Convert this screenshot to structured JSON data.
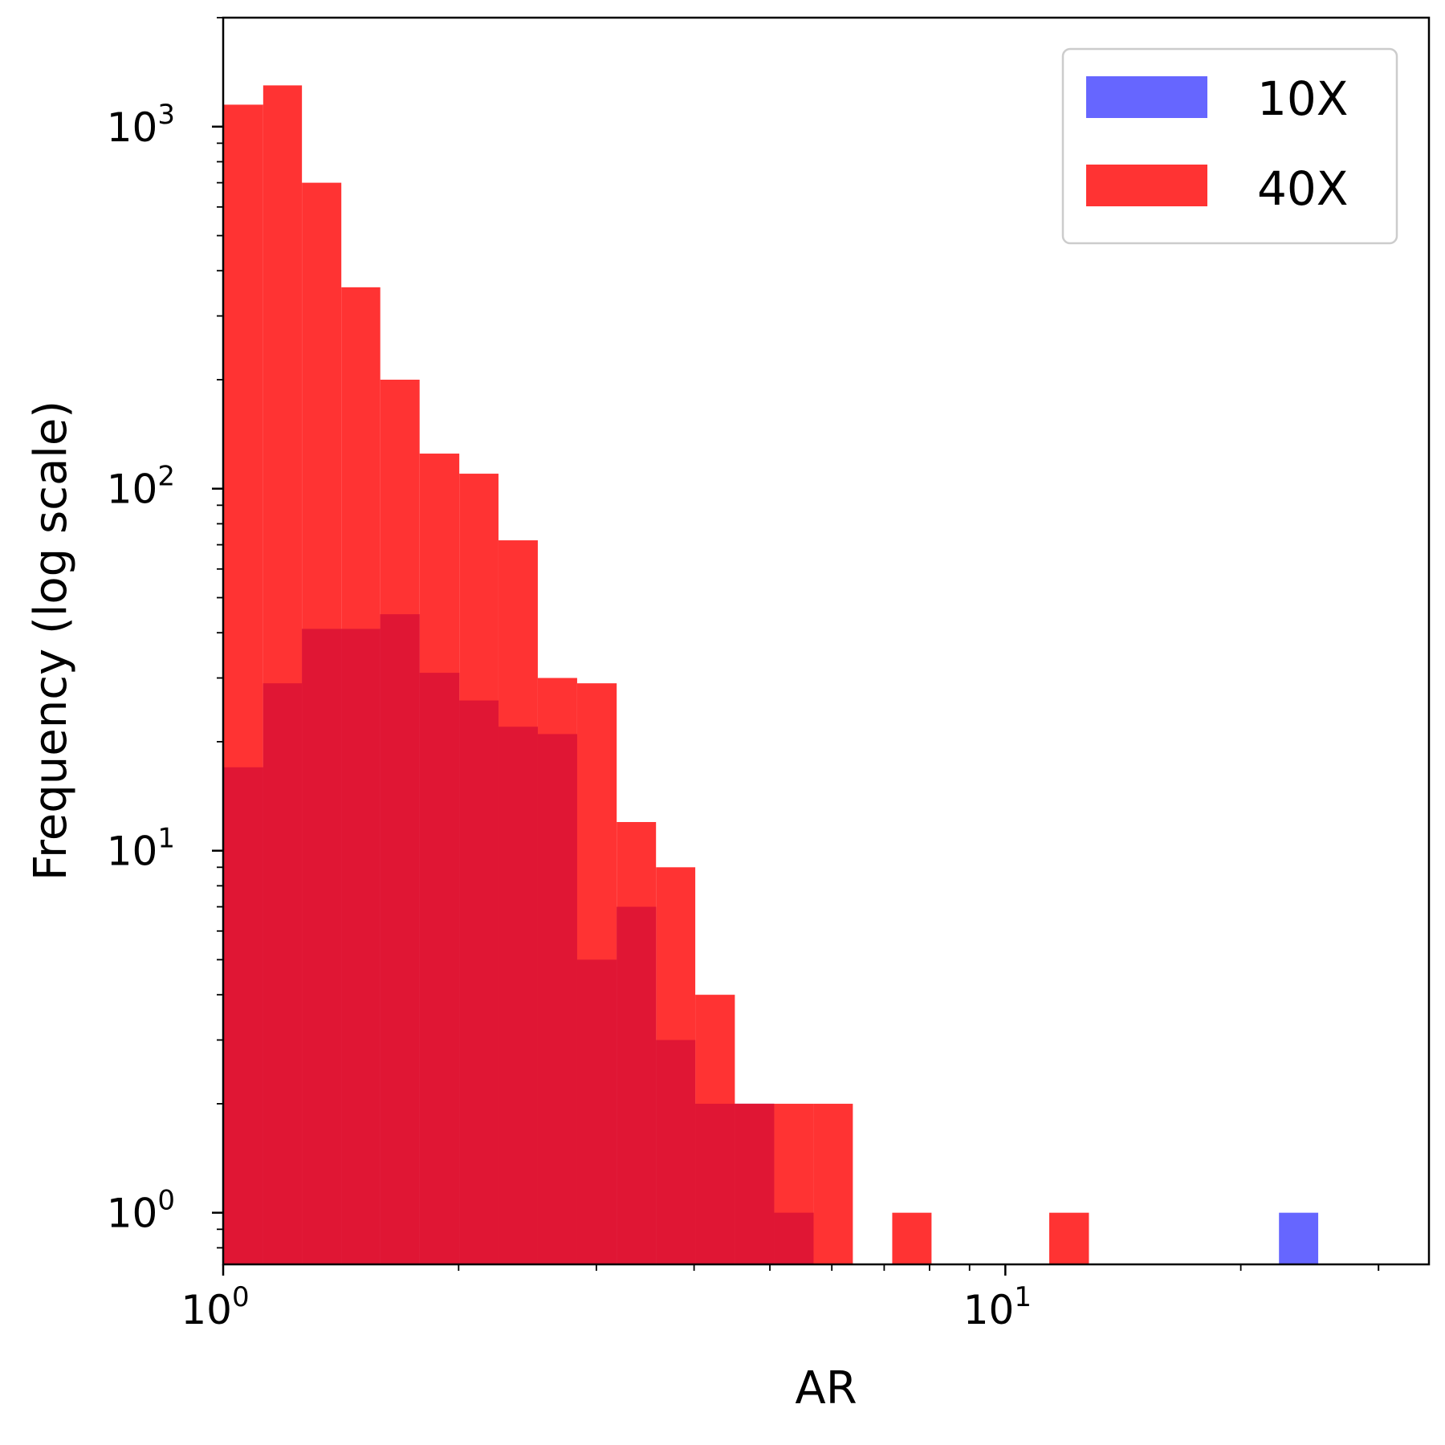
{
  "chart_data": {
    "type": "bar",
    "title": "",
    "xlabel": "AR",
    "ylabel": "Frequency (log scale)",
    "x_scale": "log",
    "y_scale": "log",
    "xlim": [
      1.0,
      34.8
    ],
    "ylim": [
      0.72,
      2000
    ],
    "x_ticks": [
      {
        "base": "10",
        "exp": "0",
        "value": 1
      },
      {
        "base": "10",
        "exp": "1",
        "value": 10
      }
    ],
    "y_ticks": [
      {
        "base": "10",
        "exp": "0",
        "value": 1
      },
      {
        "base": "10",
        "exp": "1",
        "value": 10
      },
      {
        "base": "10",
        "exp": "2",
        "value": 100
      },
      {
        "base": "10",
        "exp": "3",
        "value": 1000
      }
    ],
    "legend_position": "top-right",
    "series": [
      {
        "name": "10X",
        "color": "#6666ff",
        "bins": [
          {
            "x0": 1.0,
            "x1": 1.125,
            "count": 17
          },
          {
            "x0": 1.125,
            "x1": 1.261,
            "count": 29
          },
          {
            "x0": 1.261,
            "x1": 1.588,
            "count": 41
          },
          {
            "x0": 1.588,
            "x1": 1.783,
            "count": 45
          },
          {
            "x0": 1.783,
            "x1": 2.004,
            "count": 31
          },
          {
            "x0": 2.004,
            "x1": 2.249,
            "count": 26
          },
          {
            "x0": 2.249,
            "x1": 2.525,
            "count": 22
          },
          {
            "x0": 2.525,
            "x1": 2.835,
            "count": 21
          },
          {
            "x0": 2.835,
            "x1": 3.185,
            "count": 5
          },
          {
            "x0": 3.185,
            "x1": 3.576,
            "count": 7
          },
          {
            "x0": 3.576,
            "x1": 4.014,
            "count": 3
          },
          {
            "x0": 4.014,
            "x1": 4.51,
            "count": 2
          },
          {
            "x0": 4.51,
            "x1": 5.064,
            "count": 2
          },
          {
            "x0": 5.064,
            "x1": 5.686,
            "count": 1
          },
          {
            "x0": 22.38,
            "x1": 25.12,
            "count": 1
          }
        ]
      },
      {
        "name": "40X",
        "color": "#ff3333",
        "bins": [
          {
            "x0": 1.0,
            "x1": 1.125,
            "count": 1150
          },
          {
            "x0": 1.125,
            "x1": 1.261,
            "count": 1300
          },
          {
            "x0": 1.261,
            "x1": 1.416,
            "count": 700
          },
          {
            "x0": 1.416,
            "x1": 1.588,
            "count": 360
          },
          {
            "x0": 1.588,
            "x1": 1.783,
            "count": 200
          },
          {
            "x0": 1.783,
            "x1": 2.004,
            "count": 125
          },
          {
            "x0": 2.004,
            "x1": 2.249,
            "count": 110
          },
          {
            "x0": 2.249,
            "x1": 2.525,
            "count": 72
          },
          {
            "x0": 2.525,
            "x1": 2.835,
            "count": 30
          },
          {
            "x0": 2.835,
            "x1": 3.185,
            "count": 29
          },
          {
            "x0": 3.185,
            "x1": 3.576,
            "count": 12
          },
          {
            "x0": 3.576,
            "x1": 4.014,
            "count": 9
          },
          {
            "x0": 4.014,
            "x1": 4.51,
            "count": 4
          },
          {
            "x0": 4.51,
            "x1": 5.064,
            "count": 2
          },
          {
            "x0": 5.064,
            "x1": 5.686,
            "count": 2
          },
          {
            "x0": 5.686,
            "x1": 6.383,
            "count": 2
          },
          {
            "x0": 7.168,
            "x1": 8.047,
            "count": 1
          },
          {
            "x0": 11.38,
            "x1": 12.79,
            "count": 1
          }
        ]
      }
    ],
    "overlap_color": "#e01634"
  }
}
